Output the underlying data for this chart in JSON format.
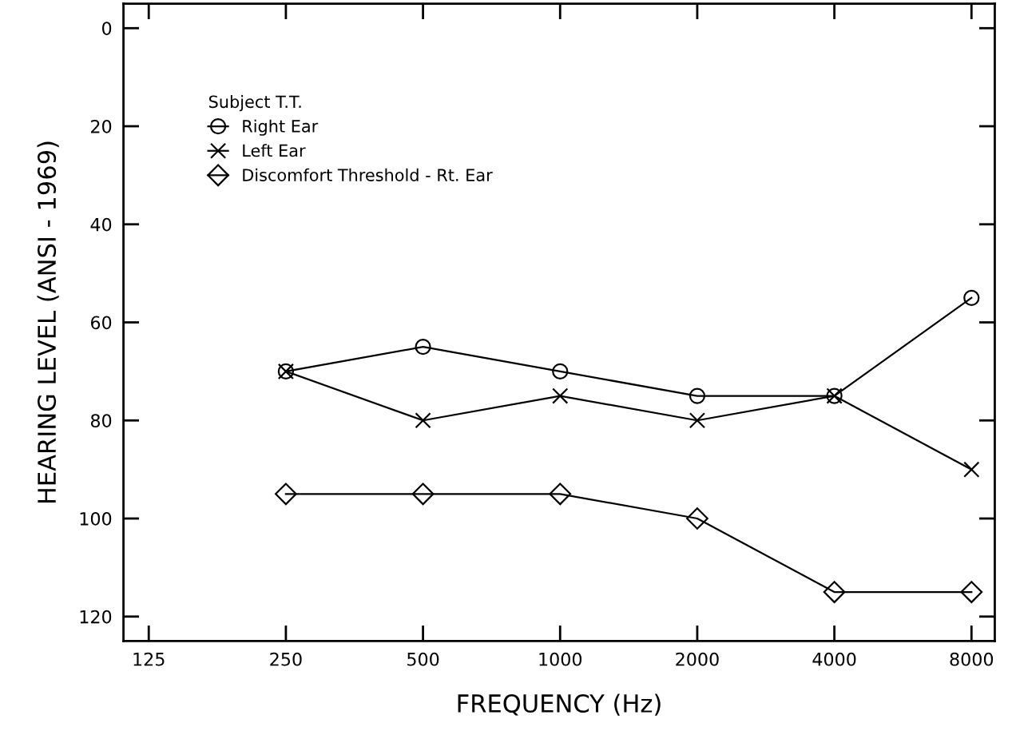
{
  "chart_data": {
    "type": "line",
    "xlabel": "FREQUENCY (Hz)",
    "ylabel": "HEARING LEVEL (ANSI - 1969)",
    "x": [
      250,
      500,
      1000,
      2000,
      4000,
      8000
    ],
    "log": "x",
    "xlim": [
      110,
      9000
    ],
    "xticks": [
      125,
      250,
      500,
      1000,
      2000,
      4000,
      8000
    ],
    "ylim": [
      125,
      -5
    ],
    "yticks": [
      0,
      20,
      40,
      60,
      80,
      100,
      120
    ],
    "legend": "top left",
    "legend_title": "Subject T.T.",
    "grid": false,
    "line_style": "solid",
    "series": [
      {
        "name": "Right Ear",
        "color": "#000000",
        "marker": "circle",
        "values": [
          70,
          65,
          70,
          75,
          75,
          55
        ]
      },
      {
        "name": "Left Ear",
        "color": "#000000",
        "marker": "cross",
        "values": [
          70,
          80,
          75,
          80,
          75,
          90
        ]
      },
      {
        "name": "Discomfort Threshold - Rt. Ear",
        "color": "#000000",
        "marker": "diamond",
        "values": [
          95,
          95,
          95,
          100,
          115,
          115
        ]
      }
    ]
  }
}
